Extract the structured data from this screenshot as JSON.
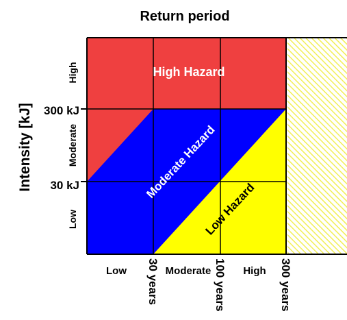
{
  "title": "Return period",
  "y_axis_label": "Intensity [kJ]",
  "y_band_labels": [
    "Low",
    "Moderate",
    "High"
  ],
  "y_thresholds": [
    "30 kJ",
    "300 kJ"
  ],
  "x_band_labels": [
    "Low",
    "Moderate",
    "High"
  ],
  "x_thresholds": [
    "30 years",
    "100 years",
    "300 years"
  ],
  "zones": {
    "high": "High Hazard",
    "moderate": "Moderate Hazard",
    "low": "Low Hazard"
  },
  "colors": {
    "high": "#ef4040",
    "moderate": "#0000ff",
    "low": "#ffff00",
    "grid": "#000000",
    "hatch": "#f2ef55"
  }
}
